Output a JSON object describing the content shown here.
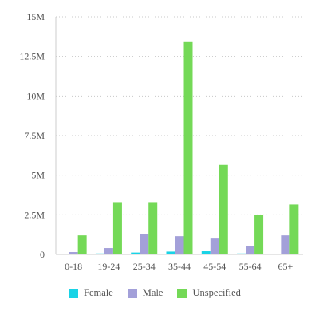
{
  "chart_data": {
    "type": "bar",
    "categories": [
      "0-18",
      "19-24",
      "25-34",
      "35-44",
      "45-54",
      "55-64",
      "65+"
    ],
    "series": [
      {
        "name": "Female",
        "color": "#19d3e6",
        "values": [
          30000,
          60000,
          120000,
          180000,
          200000,
          60000,
          50000
        ]
      },
      {
        "name": "Male",
        "color": "#a3a0d9",
        "values": [
          150000,
          400000,
          1300000,
          1150000,
          1000000,
          550000,
          1200000
        ]
      },
      {
        "name": "Unspecified",
        "color": "#74d957",
        "values": [
          1200000,
          3300000,
          3300000,
          13400000,
          5650000,
          2500000,
          3150000
        ]
      }
    ],
    "ylim": [
      0,
      15000000
    ],
    "yticks": [
      {
        "value": 0,
        "label": "0"
      },
      {
        "value": 2500000,
        "label": "2.5M"
      },
      {
        "value": 5000000,
        "label": "5M"
      },
      {
        "value": 7500000,
        "label": "7.5M"
      },
      {
        "value": 10000000,
        "label": "10M"
      },
      {
        "value": 12500000,
        "label": "12.5M"
      },
      {
        "value": 15000000,
        "label": "15M"
      }
    ],
    "grid": true,
    "legend_position": "bottom-left"
  }
}
